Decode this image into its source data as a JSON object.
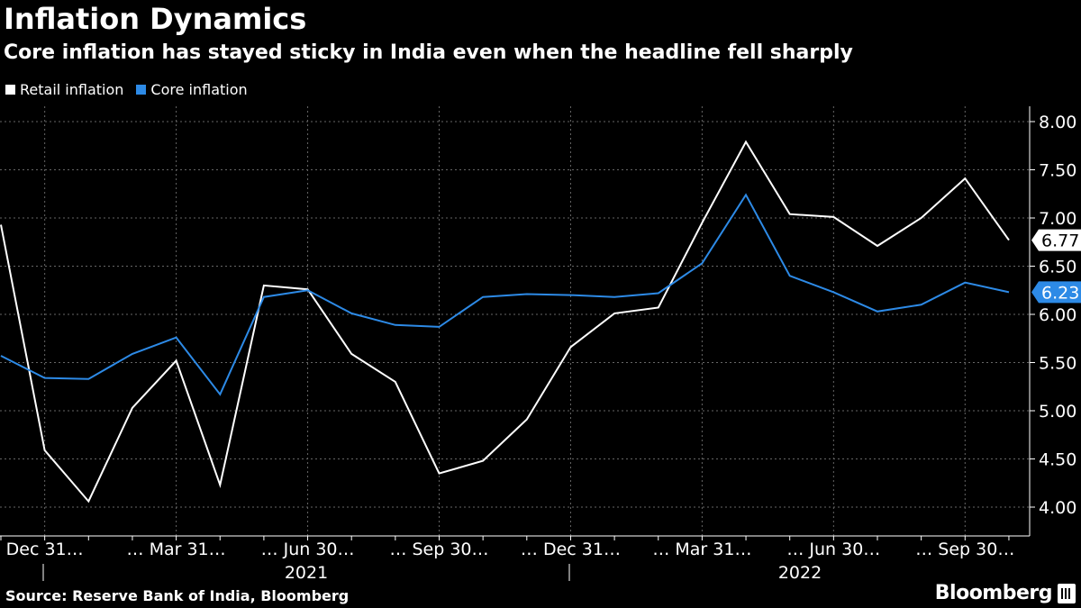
{
  "title": "Inflation Dynamics",
  "subtitle": "Core inflation has stayed sticky in India even when the headline fell sharply",
  "footer": "Source: Reserve Bank of India, Bloomberg",
  "brand": "Bloomberg",
  "colors": {
    "retail": "#ffffff",
    "core": "#2d8ae6",
    "grid": "#666666",
    "background": "#000000"
  },
  "chart_data": {
    "type": "line",
    "title": "Inflation Dynamics",
    "ylim": [
      3.7,
      8.15
    ],
    "yticks": [
      "4.00",
      "4.50",
      "5.00",
      "5.50",
      "6.00",
      "6.50",
      "7.00",
      "7.50",
      "8.00"
    ],
    "x_month_labels": [
      "Dec 31…",
      "… Mar 31…",
      "… Jun 30…",
      "… Sep 30…",
      "… Dec 31…",
      "… Mar 31…",
      "… Jun 30…",
      "… Sep 30…"
    ],
    "x_year_labels": [
      "2021",
      "2022"
    ],
    "x": [
      "2020-11",
      "2020-12",
      "2021-01",
      "2021-02",
      "2021-03",
      "2021-04",
      "2021-05",
      "2021-06",
      "2021-07",
      "2021-08",
      "2021-09",
      "2021-10",
      "2021-11",
      "2021-12",
      "2022-01",
      "2022-02",
      "2022-03",
      "2022-04",
      "2022-05",
      "2022-06",
      "2022-07",
      "2022-08",
      "2022-09",
      "2022-10"
    ],
    "series": [
      {
        "name": "Retail inflation",
        "last_label": "6.77",
        "values": [
          6.93,
          4.59,
          4.06,
          5.03,
          5.52,
          4.23,
          6.3,
          6.26,
          5.59,
          5.3,
          4.35,
          4.48,
          4.91,
          5.66,
          6.01,
          6.07,
          6.95,
          7.79,
          7.04,
          7.01,
          6.71,
          7.0,
          7.41,
          6.77
        ]
      },
      {
        "name": "Core inflation",
        "last_label": "6.23",
        "values": [
          5.57,
          5.34,
          5.33,
          5.59,
          5.76,
          5.17,
          6.18,
          6.25,
          6.01,
          5.89,
          5.87,
          6.18,
          6.21,
          6.2,
          6.18,
          6.22,
          6.53,
          7.24,
          6.4,
          6.23,
          6.03,
          6.1,
          6.33,
          6.23
        ]
      }
    ]
  }
}
